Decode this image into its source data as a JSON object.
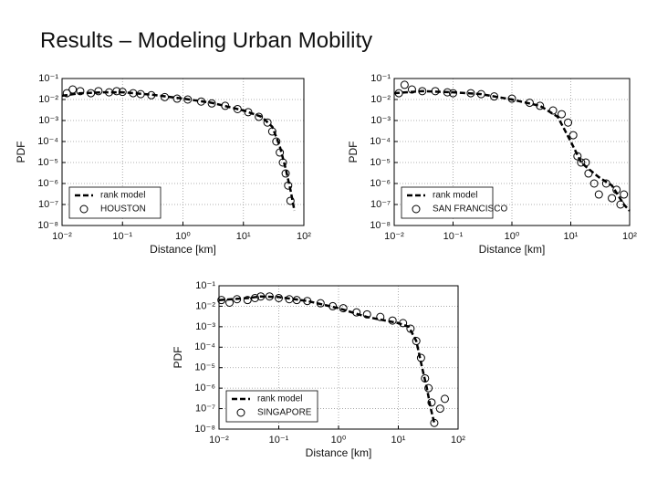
{
  "slide": {
    "title": "Results – Modeling Urban Mobility"
  },
  "chart_data": [
    {
      "type": "scatter",
      "xlabel": "Distance [km]",
      "ylabel": "PDF",
      "log_x": true,
      "log_y": true,
      "grid": true,
      "legend": "lower left",
      "xlim": [
        0.01,
        100
      ],
      "ylim": [
        1e-08,
        0.1
      ],
      "xticks": [
        {
          "value": 0.01,
          "label": "10⁻²"
        },
        {
          "value": 0.1,
          "label": "10⁻¹"
        },
        {
          "value": 1,
          "label": "10⁰"
        },
        {
          "value": 10,
          "label": "10¹"
        },
        {
          "value": 100,
          "label": "10²"
        }
      ],
      "yticks": [
        {
          "value": 1e-08,
          "label": "10⁻⁸"
        },
        {
          "value": 1e-07,
          "label": "10⁻⁷"
        },
        {
          "value": 1e-06,
          "label": "10⁻⁶"
        },
        {
          "value": 1e-05,
          "label": "10⁻⁵"
        },
        {
          "value": 0.0001,
          "label": "10⁻⁴"
        },
        {
          "value": 0.001,
          "label": "10⁻³"
        },
        {
          "value": 0.01,
          "label": "10⁻²"
        },
        {
          "value": 0.1,
          "label": "10⁻¹"
        }
      ],
      "series": [
        {
          "name": "rank model",
          "color": "#000000",
          "mark": "dashed-line",
          "x": [
            0.01,
            0.02,
            0.05,
            0.1,
            0.3,
            1,
            3,
            10,
            20,
            30,
            40,
            50,
            60,
            70
          ],
          "values": [
            0.015,
            0.02,
            0.022,
            0.022,
            0.017,
            0.011,
            0.007,
            0.003,
            0.0015,
            0.0005,
            6e-05,
            5e-06,
            5e-07,
            5e-08
          ]
        },
        {
          "name": "HOUSTON",
          "color": "#000000",
          "mark": "open-circle",
          "x": [
            0.012,
            0.015,
            0.02,
            0.03,
            0.04,
            0.06,
            0.08,
            0.1,
            0.15,
            0.2,
            0.3,
            0.5,
            0.8,
            1.2,
            2,
            3,
            5,
            8,
            12,
            18,
            25,
            30,
            35,
            40,
            45,
            50,
            55,
            60
          ],
          "values": [
            0.02,
            0.03,
            0.025,
            0.02,
            0.025,
            0.022,
            0.025,
            0.023,
            0.02,
            0.018,
            0.016,
            0.013,
            0.011,
            0.01,
            0.008,
            0.0065,
            0.005,
            0.0035,
            0.0025,
            0.0015,
            0.0008,
            0.0003,
            0.0001,
            3e-05,
            1e-05,
            3e-06,
            8e-07,
            1.5e-07
          ]
        }
      ]
    },
    {
      "type": "scatter",
      "xlabel": "Distance [km]",
      "ylabel": "PDF",
      "log_x": true,
      "log_y": true,
      "grid": true,
      "legend": "lower left",
      "xlim": [
        0.01,
        100
      ],
      "ylim": [
        1e-08,
        0.1
      ],
      "xticks": [
        {
          "value": 0.01,
          "label": "10⁻²"
        },
        {
          "value": 0.1,
          "label": "10⁻¹"
        },
        {
          "value": 1,
          "label": "10⁰"
        },
        {
          "value": 10,
          "label": "10¹"
        },
        {
          "value": 100,
          "label": "10²"
        }
      ],
      "yticks": [
        {
          "value": 1e-08,
          "label": "10⁻⁸"
        },
        {
          "value": 1e-07,
          "label": "10⁻⁷"
        },
        {
          "value": 1e-06,
          "label": "10⁻⁶"
        },
        {
          "value": 1e-05,
          "label": "10⁻⁵"
        },
        {
          "value": 0.0001,
          "label": "10⁻⁴"
        },
        {
          "value": 0.001,
          "label": "10⁻³"
        },
        {
          "value": 0.01,
          "label": "10⁻²"
        },
        {
          "value": 0.1,
          "label": "10⁻¹"
        }
      ],
      "series": [
        {
          "name": "rank model",
          "color": "#000000",
          "mark": "dashed-line",
          "x": [
            0.01,
            0.03,
            0.1,
            0.3,
            1,
            3,
            6,
            10,
            15,
            20,
            30,
            50,
            80,
            100
          ],
          "values": [
            0.02,
            0.025,
            0.022,
            0.018,
            0.01,
            0.005,
            0.0015,
            0.0001,
            1e-05,
            5e-06,
            2e-06,
            8e-07,
            1e-07,
            5e-08
          ]
        },
        {
          "name": "SAN FRANCISCO",
          "color": "#000000",
          "mark": "open-circle",
          "x": [
            0.012,
            0.015,
            0.02,
            0.03,
            0.05,
            0.08,
            0.1,
            0.2,
            0.3,
            0.5,
            1,
            2,
            3,
            5,
            7,
            9,
            11,
            13,
            15,
            18,
            20,
            25,
            30,
            40,
            50,
            60,
            70,
            80
          ],
          "values": [
            0.02,
            0.05,
            0.03,
            0.025,
            0.025,
            0.022,
            0.02,
            0.02,
            0.018,
            0.014,
            0.011,
            0.007,
            0.005,
            0.003,
            0.002,
            0.0008,
            0.0002,
            2e-05,
            1e-05,
            1e-05,
            3e-06,
            1e-06,
            3e-07,
            1e-06,
            2e-07,
            5e-07,
            1e-07,
            3e-07
          ]
        }
      ]
    },
    {
      "type": "scatter",
      "xlabel": "Distance [km]",
      "ylabel": "PDF",
      "log_x": true,
      "log_y": true,
      "grid": true,
      "legend": "lower left",
      "xlim": [
        0.01,
        100
      ],
      "ylim": [
        1e-08,
        0.1
      ],
      "xticks": [
        {
          "value": 0.01,
          "label": "10⁻²"
        },
        {
          "value": 0.1,
          "label": "10⁻¹"
        },
        {
          "value": 1,
          "label": "10⁰"
        },
        {
          "value": 10,
          "label": "10¹"
        },
        {
          "value": 100,
          "label": "10²"
        }
      ],
      "yticks": [
        {
          "value": 1e-08,
          "label": "10⁻⁸"
        },
        {
          "value": 1e-07,
          "label": "10⁻⁷"
        },
        {
          "value": 1e-06,
          "label": "10⁻⁶"
        },
        {
          "value": 1e-05,
          "label": "10⁻⁵"
        },
        {
          "value": 0.0001,
          "label": "10⁻⁴"
        },
        {
          "value": 0.001,
          "label": "10⁻³"
        },
        {
          "value": 0.01,
          "label": "10⁻²"
        },
        {
          "value": 0.1,
          "label": "10⁻¹"
        }
      ],
      "series": [
        {
          "name": "rank model",
          "color": "#000000",
          "mark": "dashed-line",
          "x": [
            0.01,
            0.03,
            0.05,
            0.1,
            0.3,
            1,
            3,
            10,
            15,
            20,
            25,
            30,
            35,
            40
          ],
          "values": [
            0.02,
            0.025,
            0.03,
            0.028,
            0.018,
            0.008,
            0.003,
            0.0015,
            0.001,
            0.0002,
            1e-05,
            1e-06,
            1e-07,
            2e-08
          ]
        },
        {
          "name": "SINGAPORE",
          "color": "#000000",
          "mark": "open-circle",
          "x": [
            0.011,
            0.015,
            0.02,
            0.03,
            0.04,
            0.05,
            0.07,
            0.1,
            0.15,
            0.2,
            0.3,
            0.5,
            0.8,
            1.2,
            2,
            3,
            5,
            8,
            12,
            16,
            20,
            24,
            28,
            32,
            36,
            40,
            50,
            60
          ],
          "values": [
            0.02,
            0.015,
            0.022,
            0.02,
            0.025,
            0.03,
            0.03,
            0.025,
            0.022,
            0.02,
            0.018,
            0.014,
            0.01,
            0.008,
            0.005,
            0.004,
            0.003,
            0.002,
            0.0015,
            0.0008,
            0.0002,
            3e-05,
            3e-06,
            1e-06,
            2e-07,
            2e-08,
            1e-07,
            3e-07
          ]
        }
      ]
    }
  ]
}
